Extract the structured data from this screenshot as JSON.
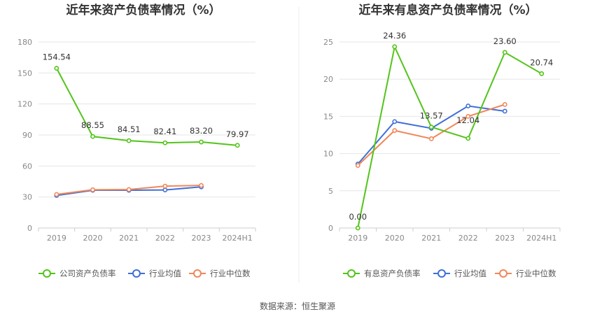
{
  "footer": {
    "source": "数据来源：恒生聚源"
  },
  "chart_data": [
    {
      "type": "line",
      "title": "近年来资产负债率情况（%）",
      "categories": [
        "2019",
        "2020",
        "2021",
        "2022",
        "2023",
        "2024H1"
      ],
      "ylim": [
        0,
        180
      ],
      "yticks": [
        0,
        30,
        60,
        90,
        120,
        150,
        180
      ],
      "grid": true,
      "legend_position": "bottom",
      "series": [
        {
          "name": "公司资产负债率",
          "color": "#52c41a",
          "values": [
            154.54,
            88.55,
            84.51,
            82.41,
            83.2,
            79.97
          ],
          "labels": [
            "154.54",
            "88.55",
            "84.51",
            "82.41",
            "83.20",
            "79.97"
          ]
        },
        {
          "name": "行业均值",
          "color": "#3f6fd8",
          "values": [
            31.5,
            36.5,
            36.5,
            36.8,
            39.8,
            null
          ]
        },
        {
          "name": "行业中位数",
          "color": "#f0875a",
          "values": [
            32.5,
            37.0,
            37.2,
            40.5,
            41.2,
            null
          ]
        }
      ]
    },
    {
      "type": "line",
      "title": "近年来有息资产负债率情况（%）",
      "categories": [
        "2019",
        "2020",
        "2021",
        "2022",
        "2023",
        "2024H1"
      ],
      "ylim": [
        0,
        25
      ],
      "yticks": [
        0,
        5,
        10,
        15,
        20,
        25
      ],
      "grid": true,
      "legend_position": "bottom",
      "series": [
        {
          "name": "有息资产负债率",
          "color": "#52c41a",
          "values": [
            0.0,
            24.36,
            13.57,
            12.04,
            23.6,
            20.74
          ],
          "labels": [
            "0.00",
            "24.36",
            "13.57",
            "12.04",
            "23.60",
            "20.74"
          ]
        },
        {
          "name": "行业均值",
          "color": "#3f6fd8",
          "values": [
            8.6,
            14.3,
            13.4,
            16.4,
            15.7,
            null
          ]
        },
        {
          "name": "行业中位数",
          "color": "#f0875a",
          "values": [
            8.4,
            13.1,
            12.0,
            15.0,
            16.6,
            null
          ]
        }
      ]
    }
  ]
}
